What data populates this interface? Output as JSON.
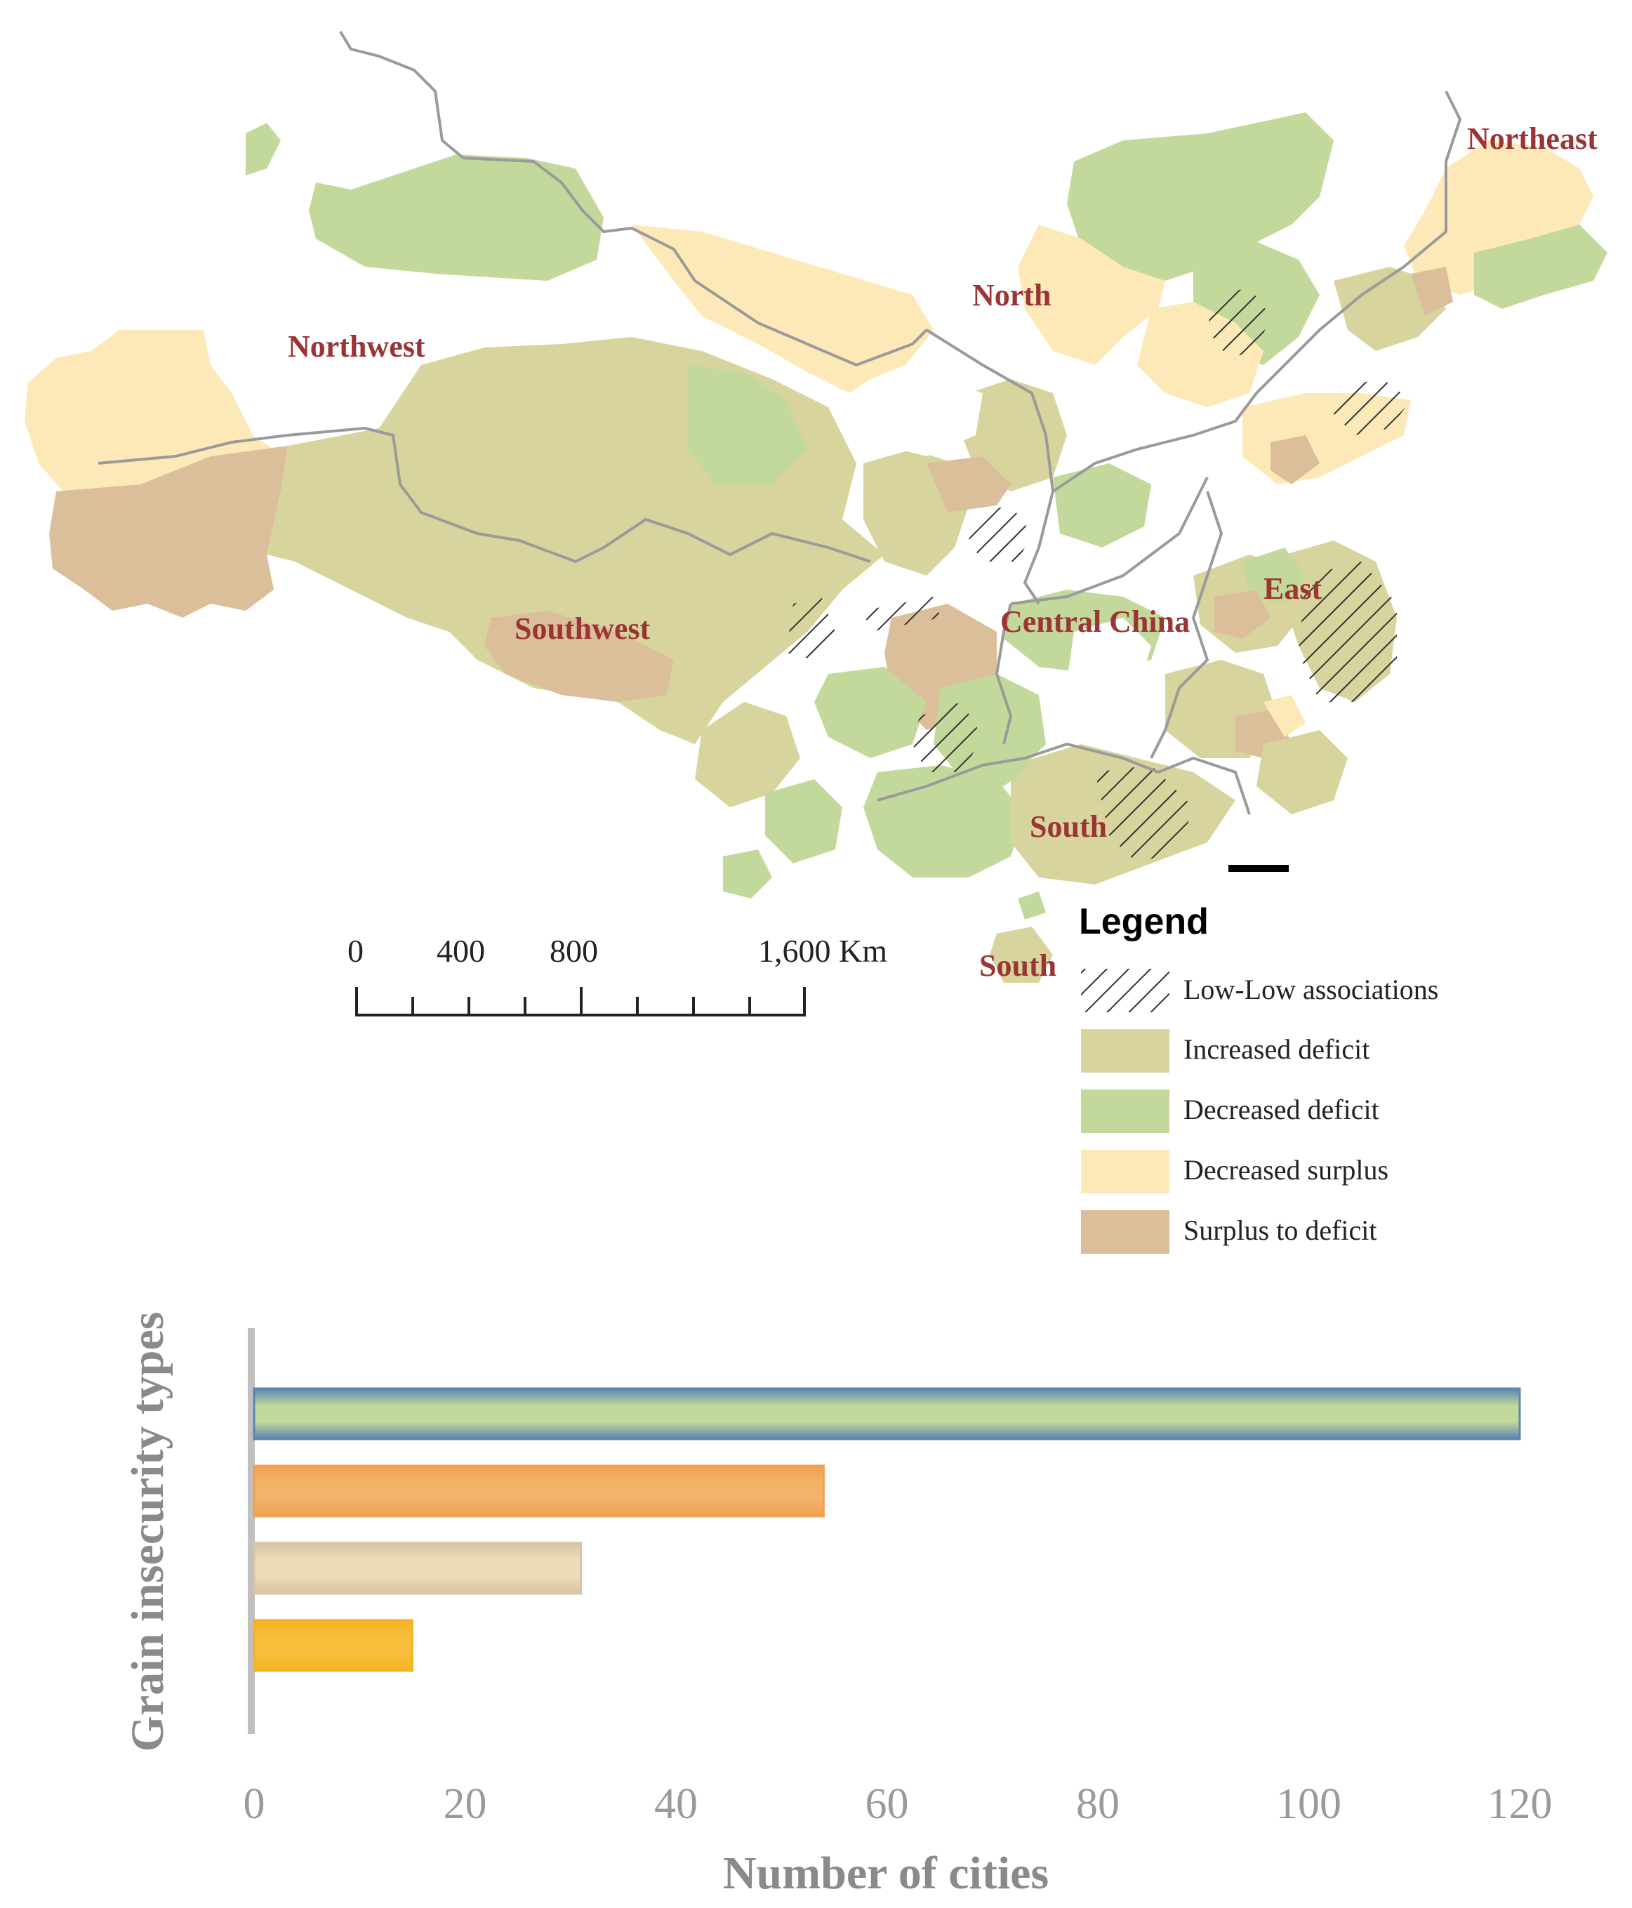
{
  "map": {
    "region_labels": [
      "Northeast",
      "North",
      "Northwest",
      "Southwest",
      "Central China",
      "East",
      "South",
      "South"
    ],
    "colors": {
      "increased_deficit": "#d7d49d",
      "decreased_deficit": "#c3d99b",
      "decreased_surplus": "#fde9b8",
      "surplus_to_deficit": "#dbbf9a",
      "border": "#9a9a9a",
      "region_label": "#9b3434"
    },
    "legend": {
      "title": "Legend",
      "items": [
        {
          "label": "Low-Low associations",
          "swatch": "hatch"
        },
        {
          "label": "Increased deficit",
          "swatch": "#d7d49d"
        },
        {
          "label": "Decreased deficit",
          "swatch": "#c3d99b"
        },
        {
          "label": "Decreased surplus",
          "swatch": "#fde9b8"
        },
        {
          "label": "Surplus to deficit",
          "swatch": "#dbbf9a"
        }
      ]
    },
    "scale_bar": {
      "labels": [
        "0",
        "400",
        "800",
        "1,600 Km"
      ]
    }
  },
  "chart_data": {
    "type": "bar",
    "orientation": "horizontal",
    "values": [
      120,
      54,
      31,
      15
    ],
    "bar_colors": [
      "#c3d99b",
      "#f3b46a",
      "#eedbb8",
      "#f8bf3e"
    ],
    "xlabel": "Number of cities",
    "ylabel": "Grain insecurity types",
    "xlim": [
      0,
      120
    ],
    "xticks": [
      "0",
      "20",
      "40",
      "60",
      "80",
      "100",
      "120"
    ],
    "grid": false
  }
}
